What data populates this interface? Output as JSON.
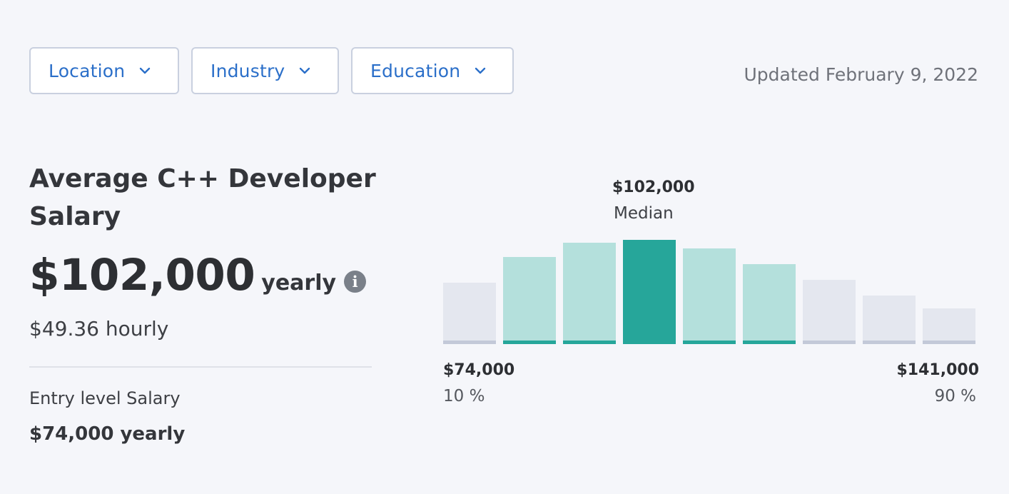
{
  "filters": [
    {
      "label": "Location"
    },
    {
      "label": "Industry"
    },
    {
      "label": "Education"
    }
  ],
  "updated": "Updated February 9, 2022",
  "title": "Average C++ Developer Salary",
  "salary": {
    "amount": "$102,000",
    "unit": "yearly",
    "hourly": "$49.36 hourly"
  },
  "entry": {
    "label": "Entry level Salary",
    "value": "$74,000 yearly"
  },
  "info_icon": "info-icon",
  "colors": {
    "median_bar": "#26a69a",
    "mid_bar": "#b4e0dc",
    "outer_bar": "#e4e7ef",
    "mid_base": "#26a69a",
    "outer_base": "#c3c9d8",
    "accent_text": "#2b6fc9"
  },
  "chart_data": {
    "type": "bar",
    "bars": [
      {
        "value": 86,
        "group": "outer"
      },
      {
        "value": 122,
        "group": "mid"
      },
      {
        "value": 142,
        "group": "mid"
      },
      {
        "value": 146,
        "group": "median"
      },
      {
        "value": 134,
        "group": "mid"
      },
      {
        "value": 112,
        "group": "mid"
      },
      {
        "value": 90,
        "group": "outer"
      },
      {
        "value": 68,
        "group": "outer"
      },
      {
        "value": 50,
        "group": "outer"
      }
    ],
    "median": {
      "value": "$102,000",
      "label": "Median"
    },
    "low": {
      "value": "$74,000",
      "pct": "10 %"
    },
    "high": {
      "value": "$141,000",
      "pct": "90 %"
    }
  }
}
